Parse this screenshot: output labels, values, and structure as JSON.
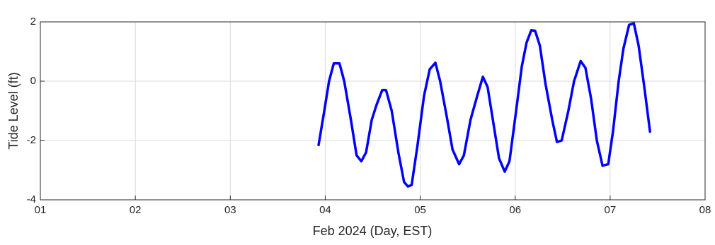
{
  "chart_data": {
    "type": "line",
    "xlabel": "Feb 2024 (Day, EST)",
    "ylabel": "Tide Level (ft)",
    "xlim": [
      1,
      8
    ],
    "xticks": [
      {
        "value": 1,
        "label": "01"
      },
      {
        "value": 2,
        "label": "02"
      },
      {
        "value": 3,
        "label": "03"
      },
      {
        "value": 4,
        "label": "04"
      },
      {
        "value": 5,
        "label": "05"
      },
      {
        "value": 6,
        "label": "06"
      },
      {
        "value": 7,
        "label": "07"
      },
      {
        "value": 8,
        "label": "08"
      }
    ],
    "ylim": [
      -4,
      2
    ],
    "yticks": [
      -4,
      -2,
      0,
      2
    ],
    "grid": true,
    "series": [
      {
        "color": "#0000ff",
        "x": [
          3.93,
          3.99,
          4.04,
          4.09,
          4.15,
          4.2,
          4.27,
          4.33,
          4.38,
          4.43,
          4.49,
          4.54,
          4.6,
          4.64,
          4.7,
          4.77,
          4.83,
          4.87,
          4.91,
          4.97,
          5.04,
          5.1,
          5.16,
          5.21,
          5.28,
          5.34,
          5.41,
          5.46,
          5.53,
          5.6,
          5.66,
          5.71,
          5.77,
          5.83,
          5.89,
          5.94,
          6.01,
          6.07,
          6.12,
          6.17,
          6.21,
          6.26,
          6.32,
          6.39,
          6.44,
          6.49,
          6.56,
          6.62,
          6.69,
          6.74,
          6.8,
          6.86,
          6.92,
          6.98,
          7.03,
          7.09,
          7.14,
          7.2,
          7.25,
          7.3,
          7.36,
          7.42
        ],
        "values": [
          -2.15,
          -1.0,
          0.0,
          0.6,
          0.6,
          0.0,
          -1.3,
          -2.5,
          -2.7,
          -2.4,
          -1.3,
          -0.8,
          -0.3,
          -0.3,
          -1.0,
          -2.4,
          -3.4,
          -3.55,
          -3.5,
          -2.2,
          -0.5,
          0.4,
          0.62,
          0.0,
          -1.2,
          -2.3,
          -2.8,
          -2.5,
          -1.3,
          -0.5,
          0.15,
          -0.2,
          -1.4,
          -2.6,
          -3.05,
          -2.7,
          -1.0,
          0.5,
          1.3,
          1.72,
          1.7,
          1.2,
          -0.1,
          -1.3,
          -2.05,
          -2.0,
          -1.0,
          0.0,
          0.68,
          0.45,
          -0.6,
          -2.0,
          -2.85,
          -2.8,
          -1.7,
          0.0,
          1.1,
          1.9,
          1.95,
          1.2,
          -0.2,
          -1.7
        ]
      }
    ]
  }
}
